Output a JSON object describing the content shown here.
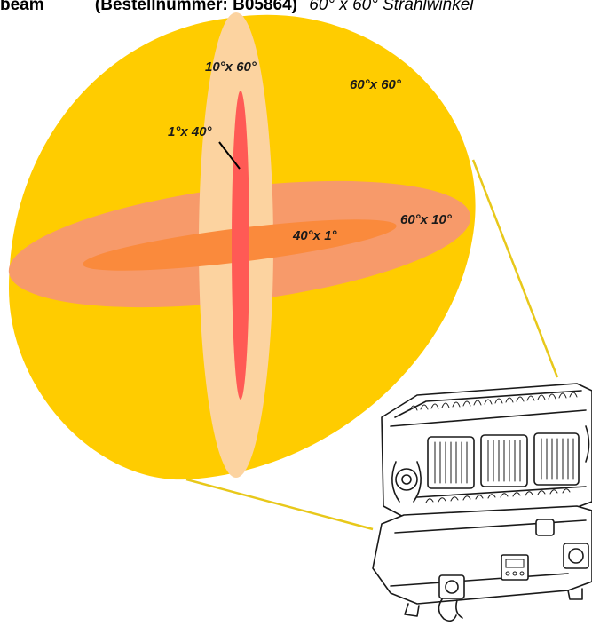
{
  "header": {
    "product": "beam",
    "order_number": "(Bestellnummer: B05864)",
    "description": "60° x 60° Strahlwinkel"
  },
  "beam_labels": {
    "wide": "60°x 60°",
    "tall_medium": "10°x 60°",
    "tall_narrow": "1°x 40°",
    "wide_narrow": "40°x 1°",
    "wide_medium": "60°x 10°"
  },
  "colors": {
    "wide_beam": "#ffcc00",
    "tall_medium_beam": "#fcd3a0",
    "tall_narrow_beam": "#ff5a55",
    "wide_medium_beam": "#f79a6a",
    "wide_narrow_beam": "#fa8a3c",
    "leader_line": "#e8c81a"
  },
  "fixture": {
    "name": "led-wash-bar-fixture"
  }
}
